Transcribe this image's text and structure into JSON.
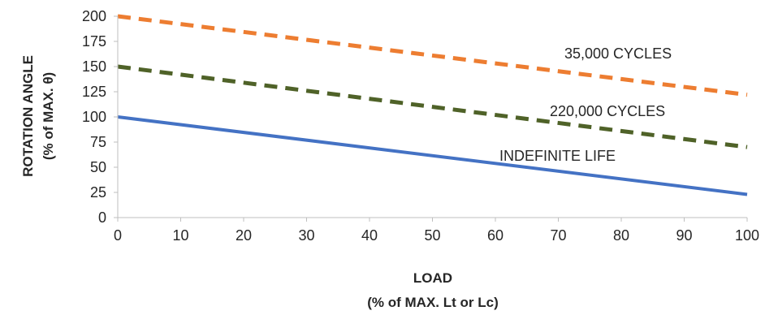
{
  "chart_data": {
    "type": "line",
    "title": "",
    "xlabel": [
      "LOAD",
      "(% of MAX. Lt or Lc)"
    ],
    "ylabel": [
      "ROTATION ANGLE",
      "(% of MAX. θ)"
    ],
    "xlim": [
      0,
      100
    ],
    "ylim": [
      0,
      200
    ],
    "xticks": [
      "0",
      "10",
      "20",
      "30",
      "40",
      "50",
      "60",
      "70",
      "80",
      "90",
      "100"
    ],
    "yticks": [
      "0",
      "25",
      "50",
      "75",
      "100",
      "125",
      "150",
      "175",
      "200"
    ],
    "grid": false,
    "legend": "none",
    "series": [
      {
        "name": "35,000 CYCLES",
        "x": [
          0,
          100
        ],
        "y": [
          200,
          122
        ],
        "color": "#ED7D31",
        "dash": "dashed"
      },
      {
        "name": "220,000 CYCLES",
        "x": [
          0,
          100
        ],
        "y": [
          150,
          70
        ],
        "color": "#4F6228",
        "dash": "dashed"
      },
      {
        "name": "INDEFINITE LIFE",
        "x": [
          0,
          100
        ],
        "y": [
          100,
          23
        ],
        "color": "#4472C4",
        "dash": "solid"
      }
    ]
  }
}
